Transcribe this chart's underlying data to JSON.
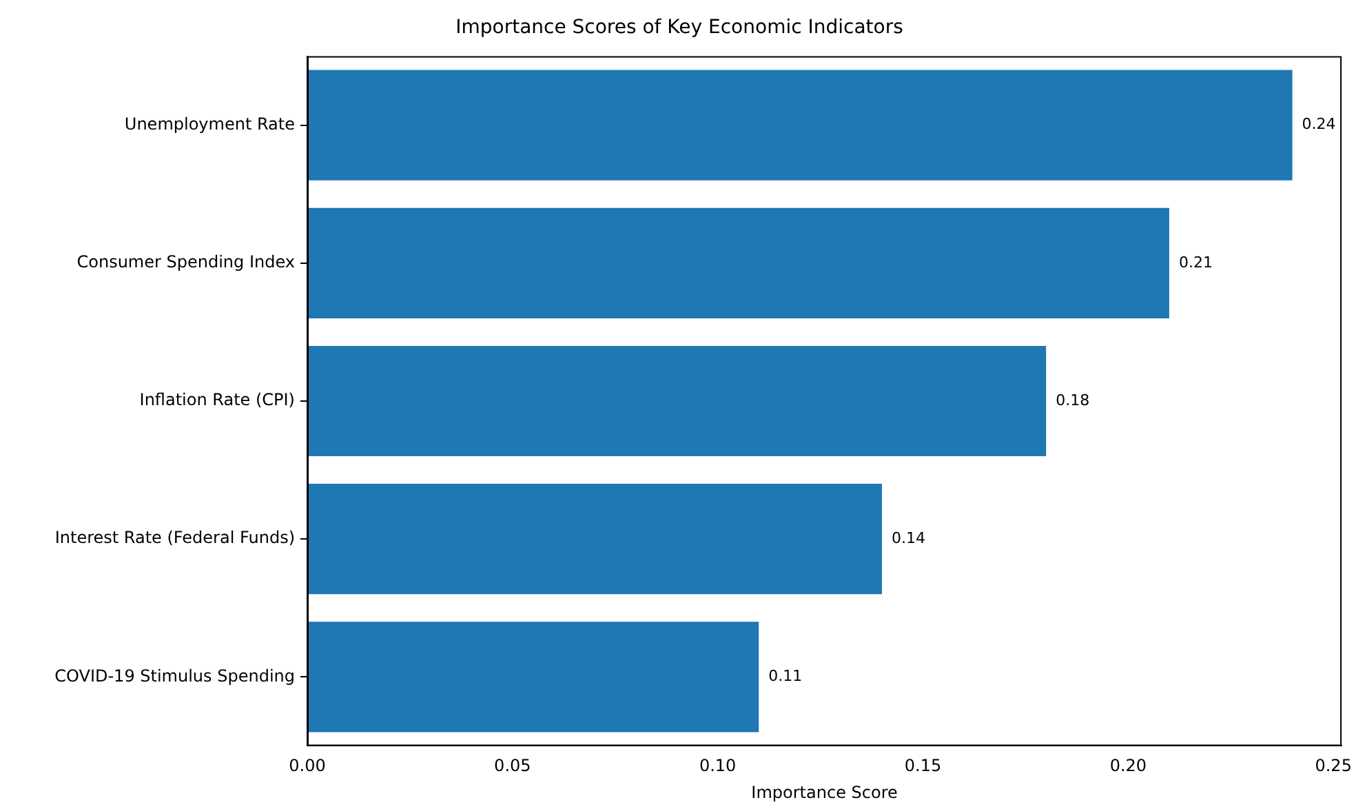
{
  "chart_data": {
    "type": "bar",
    "orientation": "horizontal",
    "title": "Importance Scores of Key Economic Indicators",
    "xlabel": "Importance Score",
    "categories": [
      "Unemployment Rate",
      "Consumer Spending Index",
      "Inflation Rate (CPI)",
      "Interest Rate (Federal Funds)",
      "COVID-19 Stimulus Spending"
    ],
    "values": [
      0.24,
      0.21,
      0.18,
      0.14,
      0.11
    ],
    "color": "#1f77b4",
    "data_labels": true,
    "xlim": [
      0,
      0.252
    ],
    "xticks": [
      {
        "value": 0,
        "label": "0.00"
      },
      {
        "value": 0.05,
        "label": "0.05"
      },
      {
        "value": 0.1,
        "label": "0.10"
      },
      {
        "value": 0.15,
        "label": "0.15"
      },
      {
        "value": 0.2,
        "label": "0.20"
      },
      {
        "value": 0.25,
        "label": "0.25"
      }
    ],
    "grid": false,
    "legend": false
  }
}
